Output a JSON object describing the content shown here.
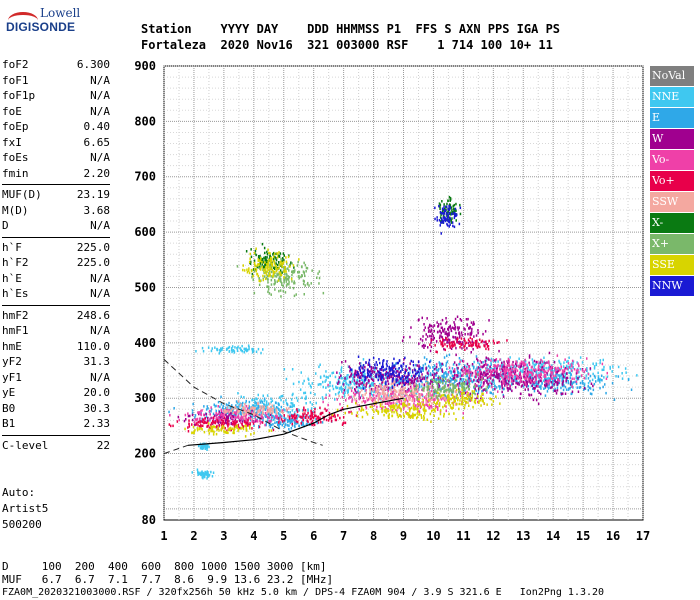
{
  "logo": {
    "line1": "Lowell",
    "line2": "DIGISONDE"
  },
  "header": {
    "line1": "Station    YYYY DAY    DDD HHMMSS P1  FFS S AXN PPS IGA PS",
    "line2": "Fortaleza  2020 Nov16  321 003000 RSF    1 714 100 10+ 11"
  },
  "params": {
    "group1": [
      {
        "k": "foF2",
        "v": "6.300"
      },
      {
        "k": "foF1",
        "v": "N/A"
      },
      {
        "k": "foF1p",
        "v": "N/A"
      },
      {
        "k": "foE",
        "v": "N/A"
      },
      {
        "k": "foEp",
        "v": "0.40"
      },
      {
        "k": "fxI",
        "v": "6.65"
      },
      {
        "k": "foEs",
        "v": "N/A"
      },
      {
        "k": "fmin",
        "v": "2.20"
      }
    ],
    "group2": [
      {
        "k": "MUF(D)",
        "v": "23.19"
      },
      {
        "k": "M(D)",
        "v": "3.68"
      },
      {
        "k": "D",
        "v": "N/A"
      }
    ],
    "group3": [
      {
        "k": "h`F",
        "v": "225.0"
      },
      {
        "k": "h`F2",
        "v": "225.0"
      },
      {
        "k": "h`E",
        "v": "N/A"
      },
      {
        "k": "h`Es",
        "v": "N/A"
      }
    ],
    "group4": [
      {
        "k": "hmF2",
        "v": "248.6"
      },
      {
        "k": "hmF1",
        "v": "N/A"
      },
      {
        "k": "hmE",
        "v": "110.0"
      },
      {
        "k": "yF2",
        "v": "31.3"
      },
      {
        "k": "yF1",
        "v": "N/A"
      },
      {
        "k": "yE",
        "v": "20.0"
      },
      {
        "k": "B0",
        "v": "30.3"
      },
      {
        "k": "B1",
        "v": "2.33"
      }
    ],
    "group5": [
      {
        "k": "C-level",
        "v": "22"
      }
    ]
  },
  "auto": {
    "line1": "Auto:",
    "line2": "Artist5",
    "line3": "500200"
  },
  "footer": {
    "d_row": "D     100  200  400  600  800 1000 1500 3000 [km]",
    "muf_row": "MUF   6.7  6.7  7.1  7.7  8.6  9.9 13.6 23.2 [MHz]",
    "file_row": "FZA0M_2020321003000.RSF / 320fx256h 50 kHz 5.0 km / DPS-4 FZA0M 904 / 3.9 S 321.6 E   Ion2Png 1.3.20"
  },
  "colors": {
    "NoVal": "#7f7f7f",
    "NNE": "#3fc8f0",
    "E": "#2fa8e8",
    "W": "#a0008f",
    "Vo-": "#ef40a8",
    "Vo+": "#e8004a",
    "SSW": "#f4a8a0",
    "X-": "#0a7a12",
    "X+": "#7ab86a",
    "SSE": "#d8d400",
    "NNW": "#1a1ad4"
  },
  "legend": [
    {
      "label": "NoVal",
      "color": "#7f7f7f"
    },
    {
      "label": "NNE",
      "color": "#3fc8f0"
    },
    {
      "label": "E",
      "color": "#2fa8e8"
    },
    {
      "label": "W",
      "color": "#a0008f"
    },
    {
      "label": "Vo-",
      "color": "#ef40a8"
    },
    {
      "label": "Vo+",
      "color": "#e8004a"
    },
    {
      "label": "SSW",
      "color": "#f4a8a0"
    },
    {
      "label": "X-",
      "color": "#0a7a12"
    },
    {
      "label": "X+",
      "color": "#7ab86a"
    },
    {
      "label": "SSE",
      "color": "#d8d400"
    },
    {
      "label": "NNW",
      "color": "#1a1ad4"
    }
  ],
  "chart_data": {
    "type": "scatter",
    "title": "",
    "xlabel": "",
    "ylabel": "",
    "xlim": [
      1,
      17
    ],
    "ylim": [
      80,
      900
    ],
    "x_ticks": [
      1,
      2,
      3,
      4,
      5,
      6,
      7,
      8,
      9,
      10,
      11,
      12,
      13,
      14,
      15,
      16,
      17
    ],
    "y_ticks": [
      80,
      200,
      300,
      400,
      500,
      600,
      700,
      800,
      900
    ],
    "grid": true,
    "legend_position": "right",
    "series": [
      {
        "name": "NNE",
        "clusters": [
          [
            2.3,
            165,
            0.5,
            12
          ],
          [
            2.3,
            215,
            0.3,
            8
          ],
          [
            3.4,
            390,
            1.8,
            10
          ],
          [
            4.5,
            285,
            2.5,
            35
          ],
          [
            13.5,
            350,
            4.5,
            45
          ],
          [
            7.5,
            330,
            3.5,
            50
          ]
        ]
      },
      {
        "name": "E",
        "clusters": [
          [
            3.5,
            280,
            3,
            30
          ],
          [
            5,
            260,
            2,
            25
          ],
          [
            10.5,
            340,
            3,
            60
          ],
          [
            14,
            330,
            3,
            35
          ]
        ]
      },
      {
        "name": "W",
        "clusters": [
          [
            3,
            265,
            2,
            20
          ],
          [
            8.5,
            340,
            3,
            50
          ],
          [
            12.5,
            340,
            4,
            60
          ],
          [
            10.5,
            420,
            2,
            50
          ]
        ]
      },
      {
        "name": "Vo-",
        "clusters": [
          [
            3.5,
            270,
            3,
            25
          ],
          [
            9,
            300,
            4,
            40
          ],
          [
            13,
            350,
            4,
            40
          ]
        ]
      },
      {
        "name": "Vo+",
        "clusters": [
          [
            3,
            255,
            2.5,
            20
          ],
          [
            6,
            270,
            2,
            25
          ],
          [
            11,
            400,
            2,
            20
          ]
        ]
      },
      {
        "name": "SSW",
        "clusters": [
          [
            4,
            280,
            2,
            20
          ],
          [
            9,
            310,
            3,
            40
          ]
        ]
      },
      {
        "name": "X-",
        "clusters": [
          [
            10.5,
            640,
            0.6,
            40
          ],
          [
            4.5,
            550,
            1.2,
            40
          ]
        ]
      },
      {
        "name": "X+",
        "clusters": [
          [
            5,
            520,
            1.8,
            50
          ],
          [
            10.5,
            320,
            2,
            30
          ]
        ]
      },
      {
        "name": "SSE",
        "clusters": [
          [
            3,
            245,
            2,
            15
          ],
          [
            4.5,
            540,
            1.5,
            45
          ],
          [
            9,
            280,
            3,
            30
          ],
          [
            11,
            300,
            2,
            25
          ]
        ]
      },
      {
        "name": "NNW",
        "clusters": [
          [
            10.4,
            630,
            0.6,
            40
          ],
          [
            8.5,
            350,
            2,
            40
          ]
        ]
      }
    ],
    "trace_solid": [
      [
        1.8,
        215
      ],
      [
        3,
        220
      ],
      [
        4,
        225
      ],
      [
        5,
        235
      ],
      [
        6,
        255
      ],
      [
        6.5,
        270
      ],
      [
        7,
        280
      ],
      [
        8,
        290
      ],
      [
        9,
        300
      ]
    ],
    "trace_dashed_upper": [
      [
        1,
        370
      ],
      [
        2,
        320
      ],
      [
        3,
        290
      ],
      [
        4,
        270
      ],
      [
        5,
        240
      ],
      [
        6,
        220
      ],
      [
        6.3,
        215
      ]
    ],
    "trace_dashed_lower": [
      [
        1,
        200
      ],
      [
        1.8,
        215
      ]
    ]
  }
}
